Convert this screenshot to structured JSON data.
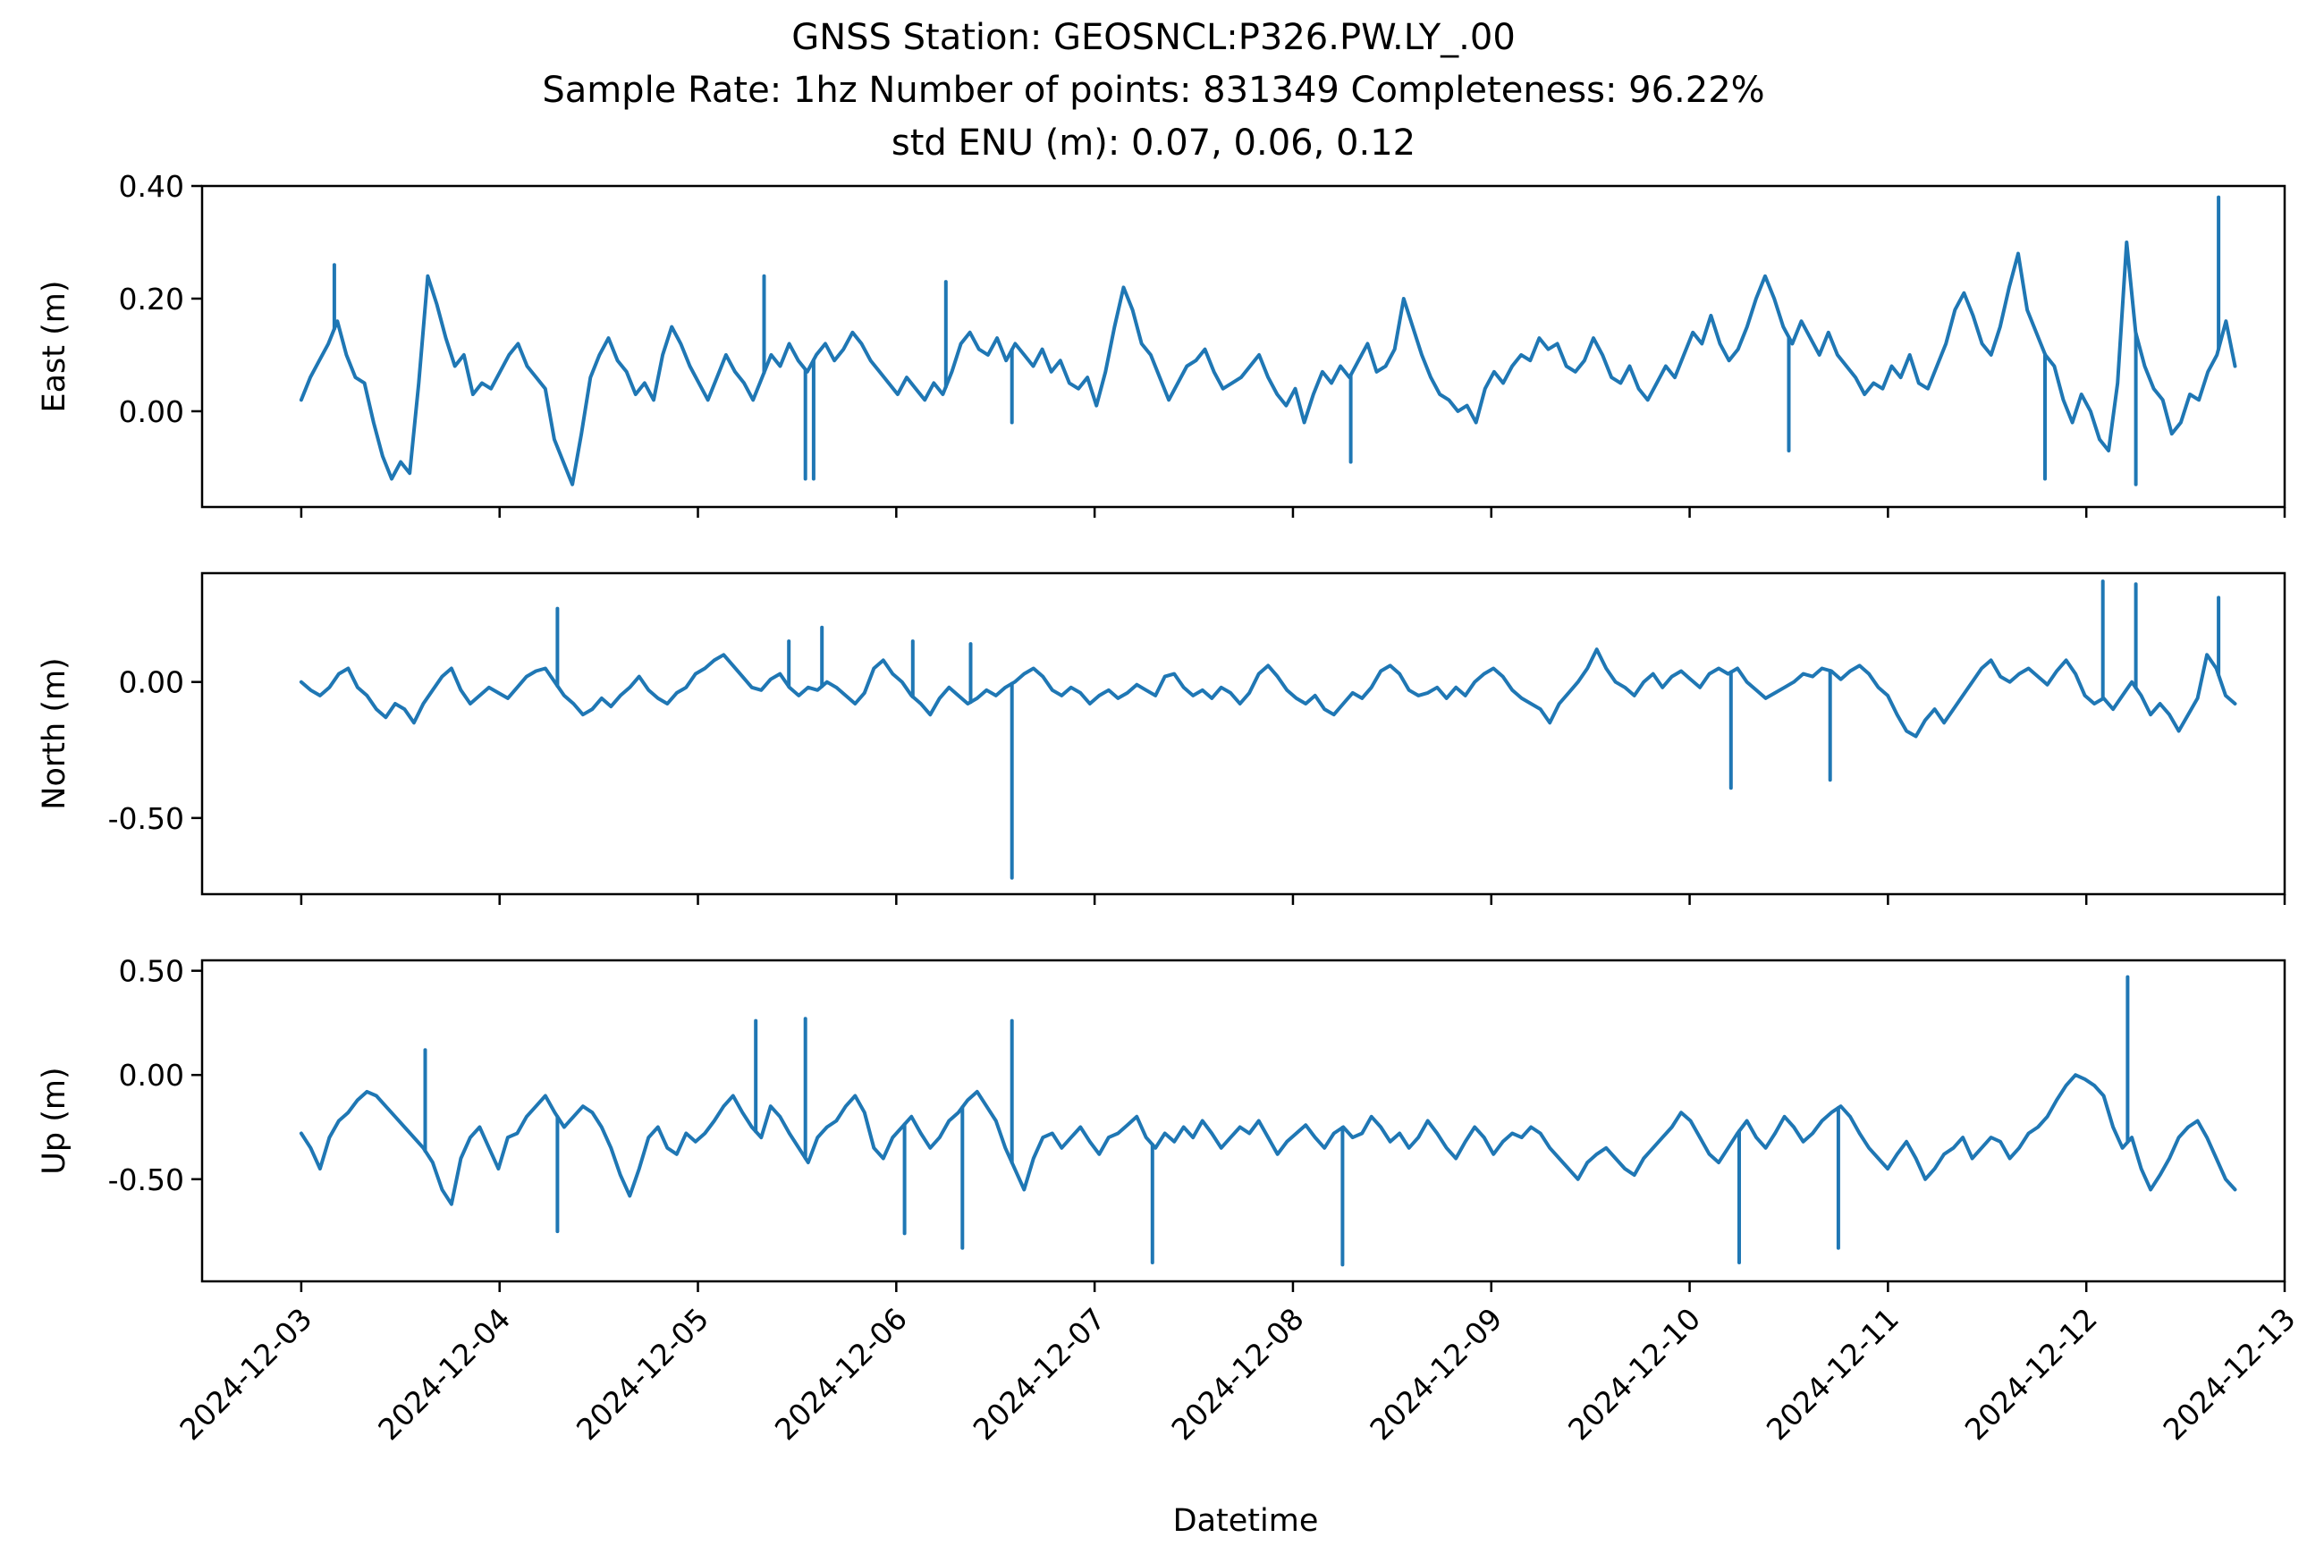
{
  "chart_data": {
    "type": "line",
    "title_lines": [
      "GNSS Station: GEOSNCL:P326.PW.LY_.00",
      "Sample Rate: 1hz   Number of points: 831349    Completeness:  96.22%",
      "std ENU (m):  0.07, 0.06, 0.12"
    ],
    "xlabel": "Datetime",
    "x_ticks": [
      "2024-12-03",
      "2024-12-04",
      "2024-12-05",
      "2024-12-06",
      "2024-12-07",
      "2024-12-08",
      "2024-12-09",
      "2024-12-10",
      "2024-12-11",
      "2024-12-12",
      "2024-12-13"
    ],
    "xlim": [
      "2024-12-02 12:00",
      "2024-12-13 00:00"
    ],
    "x_data_range": [
      "2024-12-03 00:00",
      "2024-12-12 18:00"
    ],
    "line_color": "#1f77b4",
    "grid": false,
    "legend": "none",
    "panels": [
      {
        "ylabel": "East (m)",
        "ylim": [
          -0.17,
          0.4
        ],
        "y_ticks": [
          0.0,
          0.2,
          0.4
        ],
        "y_tick_labels": [
          "0.00",
          "0.20",
          "0.40"
        ],
        "series": [
          {
            "values": [
              0.02,
              0.06,
              0.09,
              0.12,
              0.16,
              0.1,
              0.06,
              0.05,
              -0.02,
              -0.08,
              -0.12,
              -0.09,
              -0.11,
              0.05,
              0.24,
              0.19,
              0.13,
              0.08,
              0.1,
              0.03,
              0.05,
              0.04,
              0.07,
              0.1,
              0.12,
              0.08,
              0.06,
              0.04,
              -0.05,
              -0.09,
              -0.13,
              -0.04,
              0.06,
              0.1,
              0.13,
              0.09,
              0.07,
              0.03,
              0.05,
              0.02,
              0.1,
              0.15,
              0.12,
              0.08,
              0.05,
              0.02,
              0.06,
              0.1,
              0.07,
              0.05,
              0.02,
              0.06,
              0.1,
              0.08,
              0.12,
              0.09,
              0.07,
              0.1,
              0.12,
              0.09,
              0.11,
              0.14,
              0.12,
              0.09,
              0.07,
              0.05,
              0.03,
              0.06,
              0.04,
              0.02,
              0.05,
              0.03,
              0.07,
              0.12,
              0.14,
              0.11,
              0.1,
              0.13,
              0.09,
              0.12,
              0.1,
              0.08,
              0.11,
              0.07,
              0.09,
              0.05,
              0.04,
              0.06,
              0.01,
              0.07,
              0.15,
              0.22,
              0.18,
              0.12,
              0.1,
              0.06,
              0.02,
              0.05,
              0.08,
              0.09,
              0.11,
              0.07,
              0.04,
              0.05,
              0.06,
              0.08,
              0.1,
              0.06,
              0.03,
              0.01,
              0.04,
              -0.02,
              0.03,
              0.07,
              0.05,
              0.08,
              0.06,
              0.09,
              0.12,
              0.07,
              0.08,
              0.11,
              0.2,
              0.15,
              0.1,
              0.06,
              0.03,
              0.02,
              0.0,
              0.01,
              -0.02,
              0.04,
              0.07,
              0.05,
              0.08,
              0.1,
              0.09,
              0.13,
              0.11,
              0.12,
              0.08,
              0.07,
              0.09,
              0.13,
              0.1,
              0.06,
              0.05,
              0.08,
              0.04,
              0.02,
              0.05,
              0.08,
              0.06,
              0.1,
              0.14,
              0.12,
              0.17,
              0.12,
              0.09,
              0.11,
              0.15,
              0.2,
              0.24,
              0.2,
              0.15,
              0.12,
              0.16,
              0.13,
              0.1,
              0.14,
              0.1,
              0.08,
              0.06,
              0.03,
              0.05,
              0.04,
              0.08,
              0.06,
              0.1,
              0.05,
              0.04,
              0.08,
              0.12,
              0.18,
              0.21,
              0.17,
              0.12,
              0.1,
              0.15,
              0.22,
              0.28,
              0.18,
              0.14,
              0.1,
              0.08,
              0.02,
              -0.02,
              0.03,
              0.0,
              -0.05,
              -0.07,
              0.05,
              0.3,
              0.14,
              0.08,
              0.04,
              0.02,
              -0.04,
              -0.02,
              0.03,
              0.02,
              0.07,
              0.1,
              0.16,
              0.08
            ],
            "x_start": "2024-12-03 00:00",
            "x_end": "2024-12-12 18:00"
          }
        ]
      },
      {
        "ylabel": "North (m)",
        "ylim": [
          -0.78,
          0.4
        ],
        "y_ticks": [
          -0.5,
          0.0
        ],
        "y_tick_labels": [
          "-0.50",
          "0.00"
        ],
        "series": [
          {
            "values": [
              0.0,
              -0.03,
              -0.05,
              -0.02,
              0.03,
              0.05,
              -0.02,
              -0.05,
              -0.1,
              -0.13,
              -0.08,
              -0.1,
              -0.15,
              -0.08,
              -0.03,
              0.02,
              0.05,
              -0.03,
              -0.08,
              -0.05,
              -0.02,
              -0.04,
              -0.06,
              -0.02,
              0.02,
              0.04,
              0.05,
              0.0,
              -0.05,
              -0.08,
              -0.12,
              -0.1,
              -0.06,
              -0.09,
              -0.05,
              -0.02,
              0.02,
              -0.03,
              -0.06,
              -0.08,
              -0.04,
              -0.02,
              0.03,
              0.05,
              0.08,
              0.1,
              0.06,
              0.02,
              -0.02,
              -0.03,
              0.01,
              0.03,
              -0.02,
              -0.05,
              -0.02,
              -0.03,
              0.0,
              -0.02,
              -0.05,
              -0.08,
              -0.04,
              0.05,
              0.08,
              0.03,
              0.0,
              -0.05,
              -0.08,
              -0.12,
              -0.06,
              -0.02,
              -0.05,
              -0.08,
              -0.06,
              -0.03,
              -0.05,
              -0.02,
              0.0,
              0.03,
              0.05,
              0.02,
              -0.03,
              -0.05,
              -0.02,
              -0.04,
              -0.08,
              -0.05,
              -0.03,
              -0.06,
              -0.04,
              -0.01,
              -0.03,
              -0.05,
              0.02,
              0.03,
              -0.02,
              -0.05,
              -0.03,
              -0.06,
              -0.02,
              -0.04,
              -0.08,
              -0.04,
              0.03,
              0.06,
              0.02,
              -0.03,
              -0.06,
              -0.08,
              -0.05,
              -0.1,
              -0.12,
              -0.08,
              -0.04,
              -0.06,
              -0.02,
              0.04,
              0.06,
              0.03,
              -0.03,
              -0.05,
              -0.04,
              -0.02,
              -0.06,
              -0.02,
              -0.05,
              0.0,
              0.03,
              0.05,
              0.02,
              -0.03,
              -0.06,
              -0.08,
              -0.1,
              -0.15,
              -0.08,
              -0.04,
              0.0,
              0.05,
              0.12,
              0.05,
              0.0,
              -0.02,
              -0.05,
              0.0,
              0.03,
              -0.02,
              0.02,
              0.04,
              0.01,
              -0.02,
              0.03,
              0.05,
              0.03,
              0.05,
              0.0,
              -0.03,
              -0.06,
              -0.04,
              -0.02,
              0.0,
              0.03,
              0.02,
              0.05,
              0.04,
              0.01,
              0.04,
              0.06,
              0.03,
              -0.02,
              -0.05,
              -0.12,
              -0.18,
              -0.2,
              -0.14,
              -0.1,
              -0.15,
              -0.1,
              -0.05,
              0.0,
              0.05,
              0.08,
              0.02,
              0.0,
              0.03,
              0.05,
              0.02,
              -0.01,
              0.04,
              0.08,
              0.03,
              -0.05,
              -0.08,
              -0.06,
              -0.1,
              -0.05,
              0.0,
              -0.05,
              -0.12,
              -0.08,
              -0.12,
              -0.18,
              -0.12,
              -0.06,
              0.1,
              0.05,
              -0.05,
              -0.08
            ],
            "x_start": "2024-12-03 00:00",
            "x_end": "2024-12-12 18:00"
          }
        ]
      },
      {
        "ylabel": "Up (m)",
        "ylim": [
          -0.99,
          0.55
        ],
        "y_ticks": [
          -0.5,
          0.0,
          0.5
        ],
        "y_tick_labels": [
          "-0.50",
          "0.00",
          "0.50"
        ],
        "series": [
          {
            "values": [
              -0.28,
              -0.35,
              -0.45,
              -0.3,
              -0.22,
              -0.18,
              -0.12,
              -0.08,
              -0.1,
              -0.15,
              -0.2,
              -0.25,
              -0.3,
              -0.35,
              -0.42,
              -0.55,
              -0.62,
              -0.4,
              -0.3,
              -0.25,
              -0.35,
              -0.45,
              -0.3,
              -0.28,
              -0.2,
              -0.15,
              -0.1,
              -0.18,
              -0.25,
              -0.2,
              -0.15,
              -0.18,
              -0.25,
              -0.35,
              -0.48,
              -0.58,
              -0.45,
              -0.3,
              -0.25,
              -0.35,
              -0.38,
              -0.28,
              -0.32,
              -0.28,
              -0.22,
              -0.15,
              -0.1,
              -0.18,
              -0.25,
              -0.3,
              -0.15,
              -0.2,
              -0.28,
              -0.35,
              -0.42,
              -0.3,
              -0.25,
              -0.22,
              -0.15,
              -0.1,
              -0.18,
              -0.35,
              -0.4,
              -0.3,
              -0.25,
              -0.2,
              -0.28,
              -0.35,
              -0.3,
              -0.22,
              -0.18,
              -0.12,
              -0.08,
              -0.15,
              -0.22,
              -0.35,
              -0.45,
              -0.55,
              -0.4,
              -0.3,
              -0.28,
              -0.35,
              -0.3,
              -0.25,
              -0.32,
              -0.38,
              -0.3,
              -0.28,
              -0.24,
              -0.2,
              -0.3,
              -0.35,
              -0.28,
              -0.32,
              -0.25,
              -0.3,
              -0.22,
              -0.28,
              -0.35,
              -0.3,
              -0.25,
              -0.28,
              -0.22,
              -0.3,
              -0.38,
              -0.32,
              -0.28,
              -0.24,
              -0.3,
              -0.35,
              -0.28,
              -0.25,
              -0.3,
              -0.28,
              -0.2,
              -0.25,
              -0.32,
              -0.28,
              -0.35,
              -0.3,
              -0.22,
              -0.28,
              -0.35,
              -0.4,
              -0.32,
              -0.25,
              -0.3,
              -0.38,
              -0.32,
              -0.28,
              -0.3,
              -0.25,
              -0.28,
              -0.35,
              -0.4,
              -0.45,
              -0.5,
              -0.42,
              -0.38,
              -0.35,
              -0.4,
              -0.45,
              -0.48,
              -0.4,
              -0.35,
              -0.3,
              -0.25,
              -0.18,
              -0.22,
              -0.3,
              -0.38,
              -0.42,
              -0.35,
              -0.28,
              -0.22,
              -0.3,
              -0.35,
              -0.28,
              -0.2,
              -0.25,
              -0.32,
              -0.28,
              -0.22,
              -0.18,
              -0.15,
              -0.2,
              -0.28,
              -0.35,
              -0.4,
              -0.45,
              -0.38,
              -0.32,
              -0.4,
              -0.5,
              -0.45,
              -0.38,
              -0.35,
              -0.3,
              -0.4,
              -0.35,
              -0.3,
              -0.32,
              -0.4,
              -0.35,
              -0.28,
              -0.25,
              -0.2,
              -0.12,
              -0.05,
              0.0,
              -0.02,
              -0.05,
              -0.1,
              -0.25,
              -0.35,
              -0.3,
              -0.45,
              -0.55,
              -0.48,
              -0.4,
              -0.3,
              -0.25,
              -0.22,
              -0.3,
              -0.4,
              -0.5,
              -0.55
            ],
            "x_start": "2024-12-03 00:00",
            "x_end": "2024-12-12 18:00"
          }
        ]
      }
    ],
    "spikes": [
      {
        "panel": 0,
        "x": "2024-12-03 04:00",
        "y": 0.26
      },
      {
        "panel": 0,
        "x": "2024-12-05 08:00",
        "y": 0.24
      },
      {
        "panel": 0,
        "x": "2024-12-05 13:00",
        "y": -0.12
      },
      {
        "panel": 0,
        "x": "2024-12-05 14:00",
        "y": -0.12
      },
      {
        "panel": 0,
        "x": "2024-12-06 06:00",
        "y": 0.23
      },
      {
        "panel": 0,
        "x": "2024-12-06 14:00",
        "y": -0.02
      },
      {
        "panel": 0,
        "x": "2024-12-08 07:00",
        "y": -0.09
      },
      {
        "panel": 0,
        "x": "2024-12-10 12:00",
        "y": -0.07
      },
      {
        "panel": 0,
        "x": "2024-12-11 19:00",
        "y": -0.12
      },
      {
        "panel": 0,
        "x": "2024-12-12 06:00",
        "y": -0.13
      },
      {
        "panel": 0,
        "x": "2024-12-12 16:00",
        "y": 0.38
      },
      {
        "panel": 1,
        "x": "2024-12-04 07:00",
        "y": 0.27
      },
      {
        "panel": 1,
        "x": "2024-12-05 11:00",
        "y": 0.15
      },
      {
        "panel": 1,
        "x": "2024-12-05 15:00",
        "y": 0.2
      },
      {
        "panel": 1,
        "x": "2024-12-06 02:00",
        "y": 0.15
      },
      {
        "panel": 1,
        "x": "2024-12-06 09:00",
        "y": 0.14
      },
      {
        "panel": 1,
        "x": "2024-12-06 14:00",
        "y": -0.72
      },
      {
        "panel": 1,
        "x": "2024-12-10 05:00",
        "y": -0.39
      },
      {
        "panel": 1,
        "x": "2024-12-10 17:00",
        "y": -0.36
      },
      {
        "panel": 1,
        "x": "2024-12-12 02:00",
        "y": 0.37
      },
      {
        "panel": 1,
        "x": "2024-12-12 06:00",
        "y": 0.36
      },
      {
        "panel": 1,
        "x": "2024-12-12 16:00",
        "y": 0.31
      },
      {
        "panel": 2,
        "x": "2024-12-03 15:00",
        "y": 0.12
      },
      {
        "panel": 2,
        "x": "2024-12-04 07:00",
        "y": -0.75
      },
      {
        "panel": 2,
        "x": "2024-12-05 07:00",
        "y": 0.26
      },
      {
        "panel": 2,
        "x": "2024-12-05 13:00",
        "y": 0.27
      },
      {
        "panel": 2,
        "x": "2024-12-06 01:00",
        "y": -0.76
      },
      {
        "panel": 2,
        "x": "2024-12-06 08:00",
        "y": -0.83
      },
      {
        "panel": 2,
        "x": "2024-12-06 14:00",
        "y": 0.26
      },
      {
        "panel": 2,
        "x": "2024-12-07 07:00",
        "y": -0.9
      },
      {
        "panel": 2,
        "x": "2024-12-08 06:00",
        "y": -0.91
      },
      {
        "panel": 2,
        "x": "2024-12-10 06:00",
        "y": -0.9
      },
      {
        "panel": 2,
        "x": "2024-12-10 18:00",
        "y": -0.83
      },
      {
        "panel": 2,
        "x": "2024-12-12 05:00",
        "y": 0.47
      }
    ]
  }
}
